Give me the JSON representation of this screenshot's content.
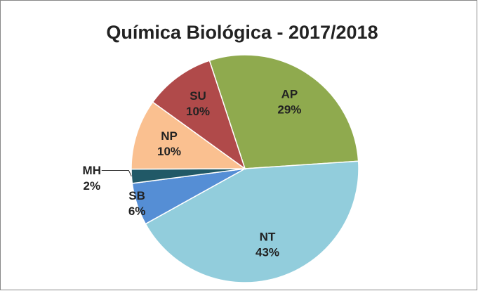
{
  "chart_data": {
    "type": "pie",
    "title": "Química Biológica - 2017/2018",
    "categories": [
      "AP",
      "NT",
      "SB",
      "MH",
      "NP",
      "SU"
    ],
    "values": [
      29,
      43,
      6,
      2,
      10,
      10
    ],
    "value_labels": [
      "29%",
      "43%",
      "6%",
      "2%",
      "10%",
      "10%"
    ],
    "colors": [
      "#8faa4e",
      "#92cddc",
      "#558ed5",
      "#215967",
      "#fac090",
      "#b04a4a"
    ]
  }
}
